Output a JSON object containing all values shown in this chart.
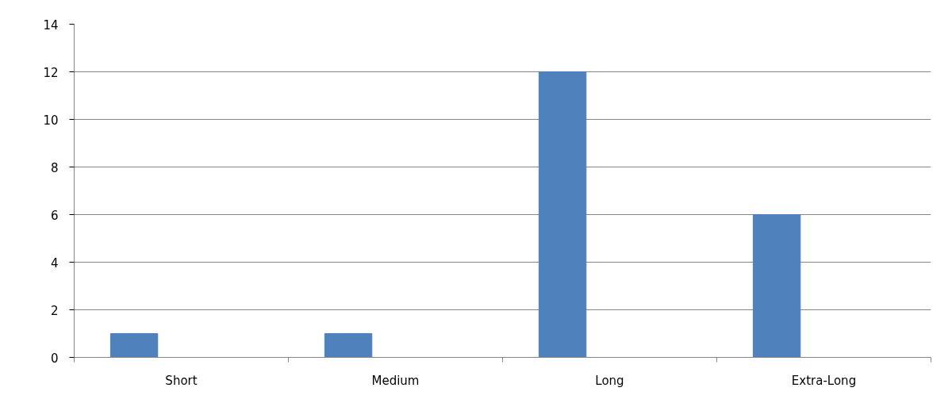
{
  "chart_data": {
    "type": "bar",
    "categories": [
      "Short",
      "Medium",
      "Long",
      "Extra-Long"
    ],
    "values": [
      1,
      1,
      12,
      6
    ],
    "color": "#4f81bd",
    "ylim": [
      0,
      14
    ],
    "yticks": [
      0,
      2,
      4,
      6,
      8,
      10,
      12,
      14
    ],
    "grid": "y"
  }
}
